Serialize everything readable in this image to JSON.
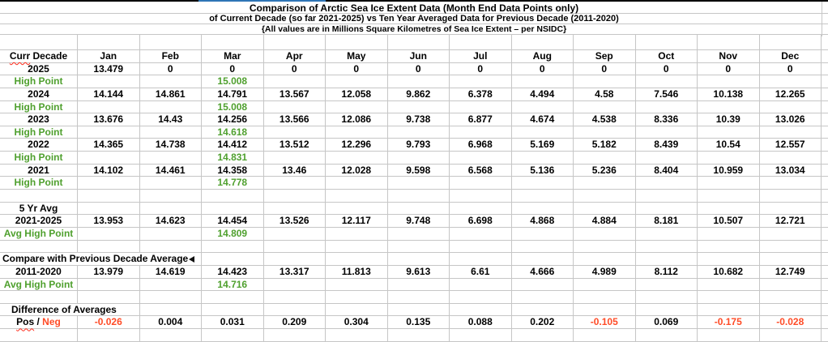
{
  "title": {
    "line1": "Comparison of Arctic Sea Ice Extent Data (Month End Data Points only)",
    "line2": "of Current Decade (so far 2021-2025) vs Ten Year Averaged Data for Previous Decade (2011-2020)",
    "line3": "{All values are in Millions Square Kilometres of Sea Ice Extent – per NSIDC}"
  },
  "colors": {
    "green": "#4FA02E",
    "negative": "#FF4B26",
    "gridline": "#C6C6C6",
    "accent_blue": "#2E75B6",
    "squiggle_red": "#FF2A1A",
    "text": "#000000"
  },
  "table": {
    "columns": [
      "Curr Decade",
      "Jan",
      "Feb",
      "Mar",
      "Apr",
      "May",
      "Jun",
      "Jul",
      "Aug",
      "Sep",
      "Oct",
      "Nov",
      "Dec"
    ],
    "rows": [
      {
        "id": "top-spacer",
        "kind": "spacer"
      },
      {
        "id": "header",
        "kind": "header",
        "parts": [
          {
            "text": "Curr",
            "wavy": true
          },
          {
            "text": " Decade"
          }
        ]
      },
      {
        "id": "2025",
        "kind": "year",
        "label": "2025",
        "cells": [
          "13.479",
          "0",
          "0",
          "0",
          "0",
          "0",
          "0",
          "0",
          "0",
          "0",
          "0",
          "0"
        ]
      },
      {
        "id": "hp-2025",
        "kind": "highpoint",
        "label": "High Point",
        "cells": [
          "",
          "",
          "15.008",
          "",
          "",
          "",
          "",
          "",
          "",
          "",
          "",
          ""
        ]
      },
      {
        "id": "2024",
        "kind": "year",
        "label": "2024",
        "cells": [
          "14.144",
          "14.861",
          "14.791",
          "13.567",
          "12.058",
          "9.862",
          "6.378",
          "4.494",
          "4.58",
          "7.546",
          "10.138",
          "12.265"
        ]
      },
      {
        "id": "hp-2024",
        "kind": "highpoint",
        "label": "High Point",
        "cells": [
          "",
          "",
          "15.008",
          "",
          "",
          "",
          "",
          "",
          "",
          "",
          "",
          ""
        ]
      },
      {
        "id": "2023",
        "kind": "year",
        "label": "2023",
        "cells": [
          "13.676",
          "14.43",
          "14.256",
          "13.566",
          "12.086",
          "9.738",
          "6.877",
          "4.674",
          "4.538",
          "8.336",
          "10.39",
          "13.026"
        ]
      },
      {
        "id": "hp-2023",
        "kind": "highpoint",
        "label": "High Point",
        "cells": [
          "",
          "",
          "14.618",
          "",
          "",
          "",
          "",
          "",
          "",
          "",
          "",
          ""
        ]
      },
      {
        "id": "2022",
        "kind": "year",
        "label": "2022",
        "cells": [
          "14.365",
          "14.738",
          "14.412",
          "13.512",
          "12.296",
          "9.793",
          "6.968",
          "5.169",
          "5.182",
          "8.439",
          "10.54",
          "12.557"
        ]
      },
      {
        "id": "hp-2022",
        "kind": "highpoint",
        "label": "High Point",
        "cells": [
          "",
          "",
          "14.831",
          "",
          "",
          "",
          "",
          "",
          "",
          "",
          "",
          ""
        ]
      },
      {
        "id": "2021",
        "kind": "year",
        "label": "2021",
        "cells": [
          "14.102",
          "14.461",
          "14.358",
          "13.46",
          "12.028",
          "9.598",
          "6.568",
          "5.136",
          "5.236",
          "8.404",
          "10.959",
          "13.034"
        ]
      },
      {
        "id": "hp-2021",
        "kind": "highpoint",
        "label": "High Point",
        "cells": [
          "",
          "",
          "14.778",
          "",
          "",
          "",
          "",
          "",
          "",
          "",
          "",
          ""
        ]
      },
      {
        "id": "gap-1",
        "kind": "spacer"
      },
      {
        "id": "five-yr-avg",
        "kind": "label",
        "label": "5 Yr Avg"
      },
      {
        "id": "2021-2025",
        "kind": "year",
        "label": "2021-2025",
        "cells": [
          "13.953",
          "14.623",
          "14.454",
          "13.526",
          "12.117",
          "9.748",
          "6.698",
          "4.868",
          "4.884",
          "8.181",
          "10.507",
          "12.721"
        ]
      },
      {
        "id": "avg-hp-curr",
        "kind": "highpoint",
        "label": "Avg High Point",
        "cells": [
          "",
          "",
          "14.809",
          "",
          "",
          "",
          "",
          "",
          "",
          "",
          "",
          ""
        ]
      },
      {
        "id": "gap-2",
        "kind": "spacer"
      },
      {
        "id": "compare-heading",
        "kind": "section",
        "span": 3,
        "label": "Compare with Previous Decade Average",
        "arrow": "left-triangle-icon"
      },
      {
        "id": "2011-2020",
        "kind": "year",
        "label": "2011-2020",
        "cells": [
          "13.979",
          "14.619",
          "14.423",
          "13.317",
          "11.813",
          "9.613",
          "6.61",
          "4.666",
          "4.989",
          "8.112",
          "10.682",
          "12.749"
        ]
      },
      {
        "id": "avg-hp-prev",
        "kind": "highpoint",
        "label": "Avg High Point",
        "cells": [
          "",
          "",
          "14.716",
          "",
          "",
          "",
          "",
          "",
          "",
          "",
          "",
          ""
        ]
      },
      {
        "id": "gap-3",
        "kind": "spacer"
      },
      {
        "id": "diff-heading",
        "kind": "section",
        "span": 2,
        "label": "Difference of Averages"
      },
      {
        "id": "pos-neg",
        "kind": "posneg",
        "parts": [
          {
            "text": "Pos",
            "wavy": true
          },
          {
            "text": " / "
          },
          {
            "text": "Neg",
            "color": "negative"
          }
        ],
        "cells": [
          "-0.026",
          "0.004",
          "0.031",
          "0.209",
          "0.304",
          "0.135",
          "0.088",
          "0.202",
          "-0.105",
          "0.069",
          "-0.175",
          "-0.028"
        ]
      },
      {
        "id": "bottom-spacer",
        "kind": "spacer"
      }
    ]
  }
}
